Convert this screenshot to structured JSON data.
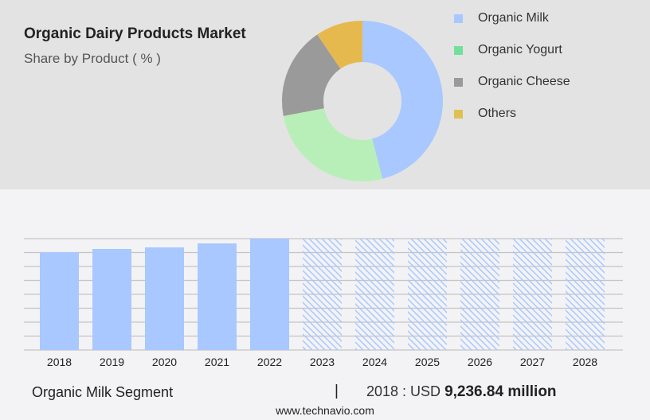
{
  "chart_data": [
    {
      "type": "pie",
      "title": "Organic Dairy Products Market",
      "subtitle": "Share by Product ( % )",
      "donut": true,
      "slices": [
        {
          "name": "Organic Milk",
          "value": 46,
          "color": "#a8c8ff"
        },
        {
          "name": "Organic Yogurt",
          "value": 26,
          "color": "#b8efb8",
          "legend_color": "#72e09a"
        },
        {
          "name": "Organic Cheese",
          "value": 18.5,
          "color": "#9a9a9a"
        },
        {
          "name": "Others",
          "value": 9.5,
          "color": "#e6b94f",
          "legend_color": "#dfc052"
        }
      ],
      "legend_placement": "right"
    },
    {
      "type": "bar",
      "categories": [
        "2018",
        "2019",
        "2020",
        "2021",
        "2022",
        "2023",
        "2024",
        "2025",
        "2026",
        "2027",
        "2028"
      ],
      "values": [
        9236.84,
        9537,
        9687,
        10062,
        10513,
        null,
        null,
        null,
        null,
        null,
        null
      ],
      "forecast_from": "2023",
      "ylim": [
        0,
        10513
      ],
      "grid": true,
      "bar_color": "#a8c8ff"
    }
  ],
  "footer": {
    "segment": "Organic Milk Segment",
    "separator": "|",
    "year_label": "2018 : USD",
    "value": "9,236.84 million",
    "site": "www.technavio.com"
  }
}
